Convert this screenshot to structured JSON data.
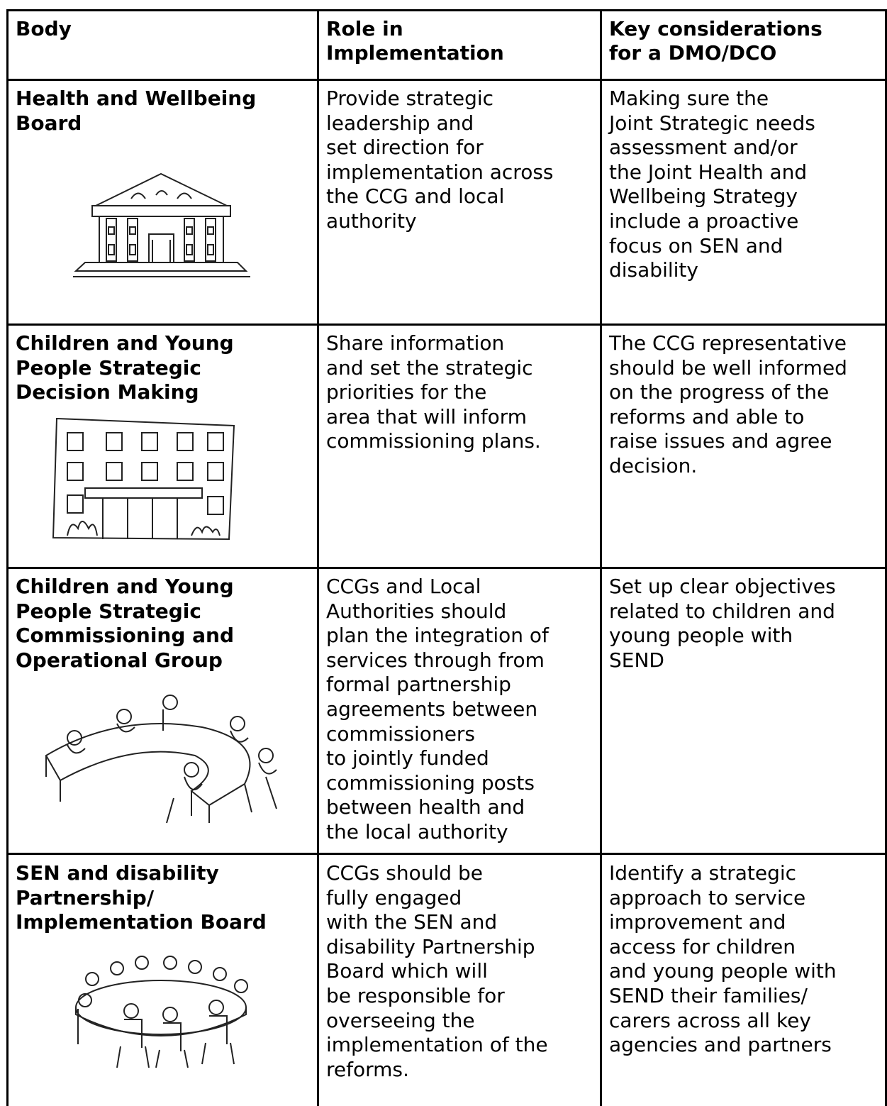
{
  "table": {
    "header": [
      [
        "Body"
      ],
      [
        "Role in",
        "Implementation"
      ],
      [
        "Key considerations",
        "for a DMO/DCO"
      ]
    ],
    "rows": [
      [
        [
          "Health and Wellbeing",
          "Board"
        ],
        [
          "Provide strategic",
          "leadership and",
          "set direction for",
          "implementation across",
          "the CCG and local",
          "authority"
        ],
        [
          "Making sure the",
          "Joint Strategic needs",
          "assessment and/or",
          "the Joint Health and",
          "Wellbeing Strategy",
          "include a proactive",
          "focus on SEN and",
          "disability"
        ]
      ],
      [
        [
          "Children and Young",
          "People Strategic",
          "Decision Making"
        ],
        [
          "Share information",
          "and set the strategic",
          "priorities for the",
          "area that will inform",
          "commissioning plans."
        ],
        [
          "The CCG representative",
          "should be well informed",
          "on the progress of the",
          "reforms and able to",
          "raise issues and agree",
          "decision."
        ]
      ],
      [
        [
          "Children and Young",
          "People Strategic",
          "Commissioning and",
          "Operational Group"
        ],
        [
          "CCGs and Local",
          "Authorities should",
          "plan the integration of",
          "services through from",
          "formal partnership",
          "agreements between",
          "commissioners",
          "to jointly funded",
          "commissioning posts",
          "between health and",
          "the local authority"
        ],
        [
          "Set up clear objectives",
          "related to children and",
          "young people with",
          "SEND"
        ]
      ],
      [
        [
          "SEN and disability",
          "Partnership/",
          "Implementation Board"
        ],
        [
          "CCGs should be",
          "fully engaged",
          "with the SEN and",
          "disability Partnership",
          "Board which will",
          "be responsible for",
          "overseeing the",
          "implementation of the",
          "reforms."
        ],
        [
          "Identify a strategic",
          "approach to service",
          "improvement and",
          "access for children",
          "and young people with",
          "SEND their families/",
          "carers across all key",
          "agencies and partners"
        ]
      ]
    ]
  }
}
